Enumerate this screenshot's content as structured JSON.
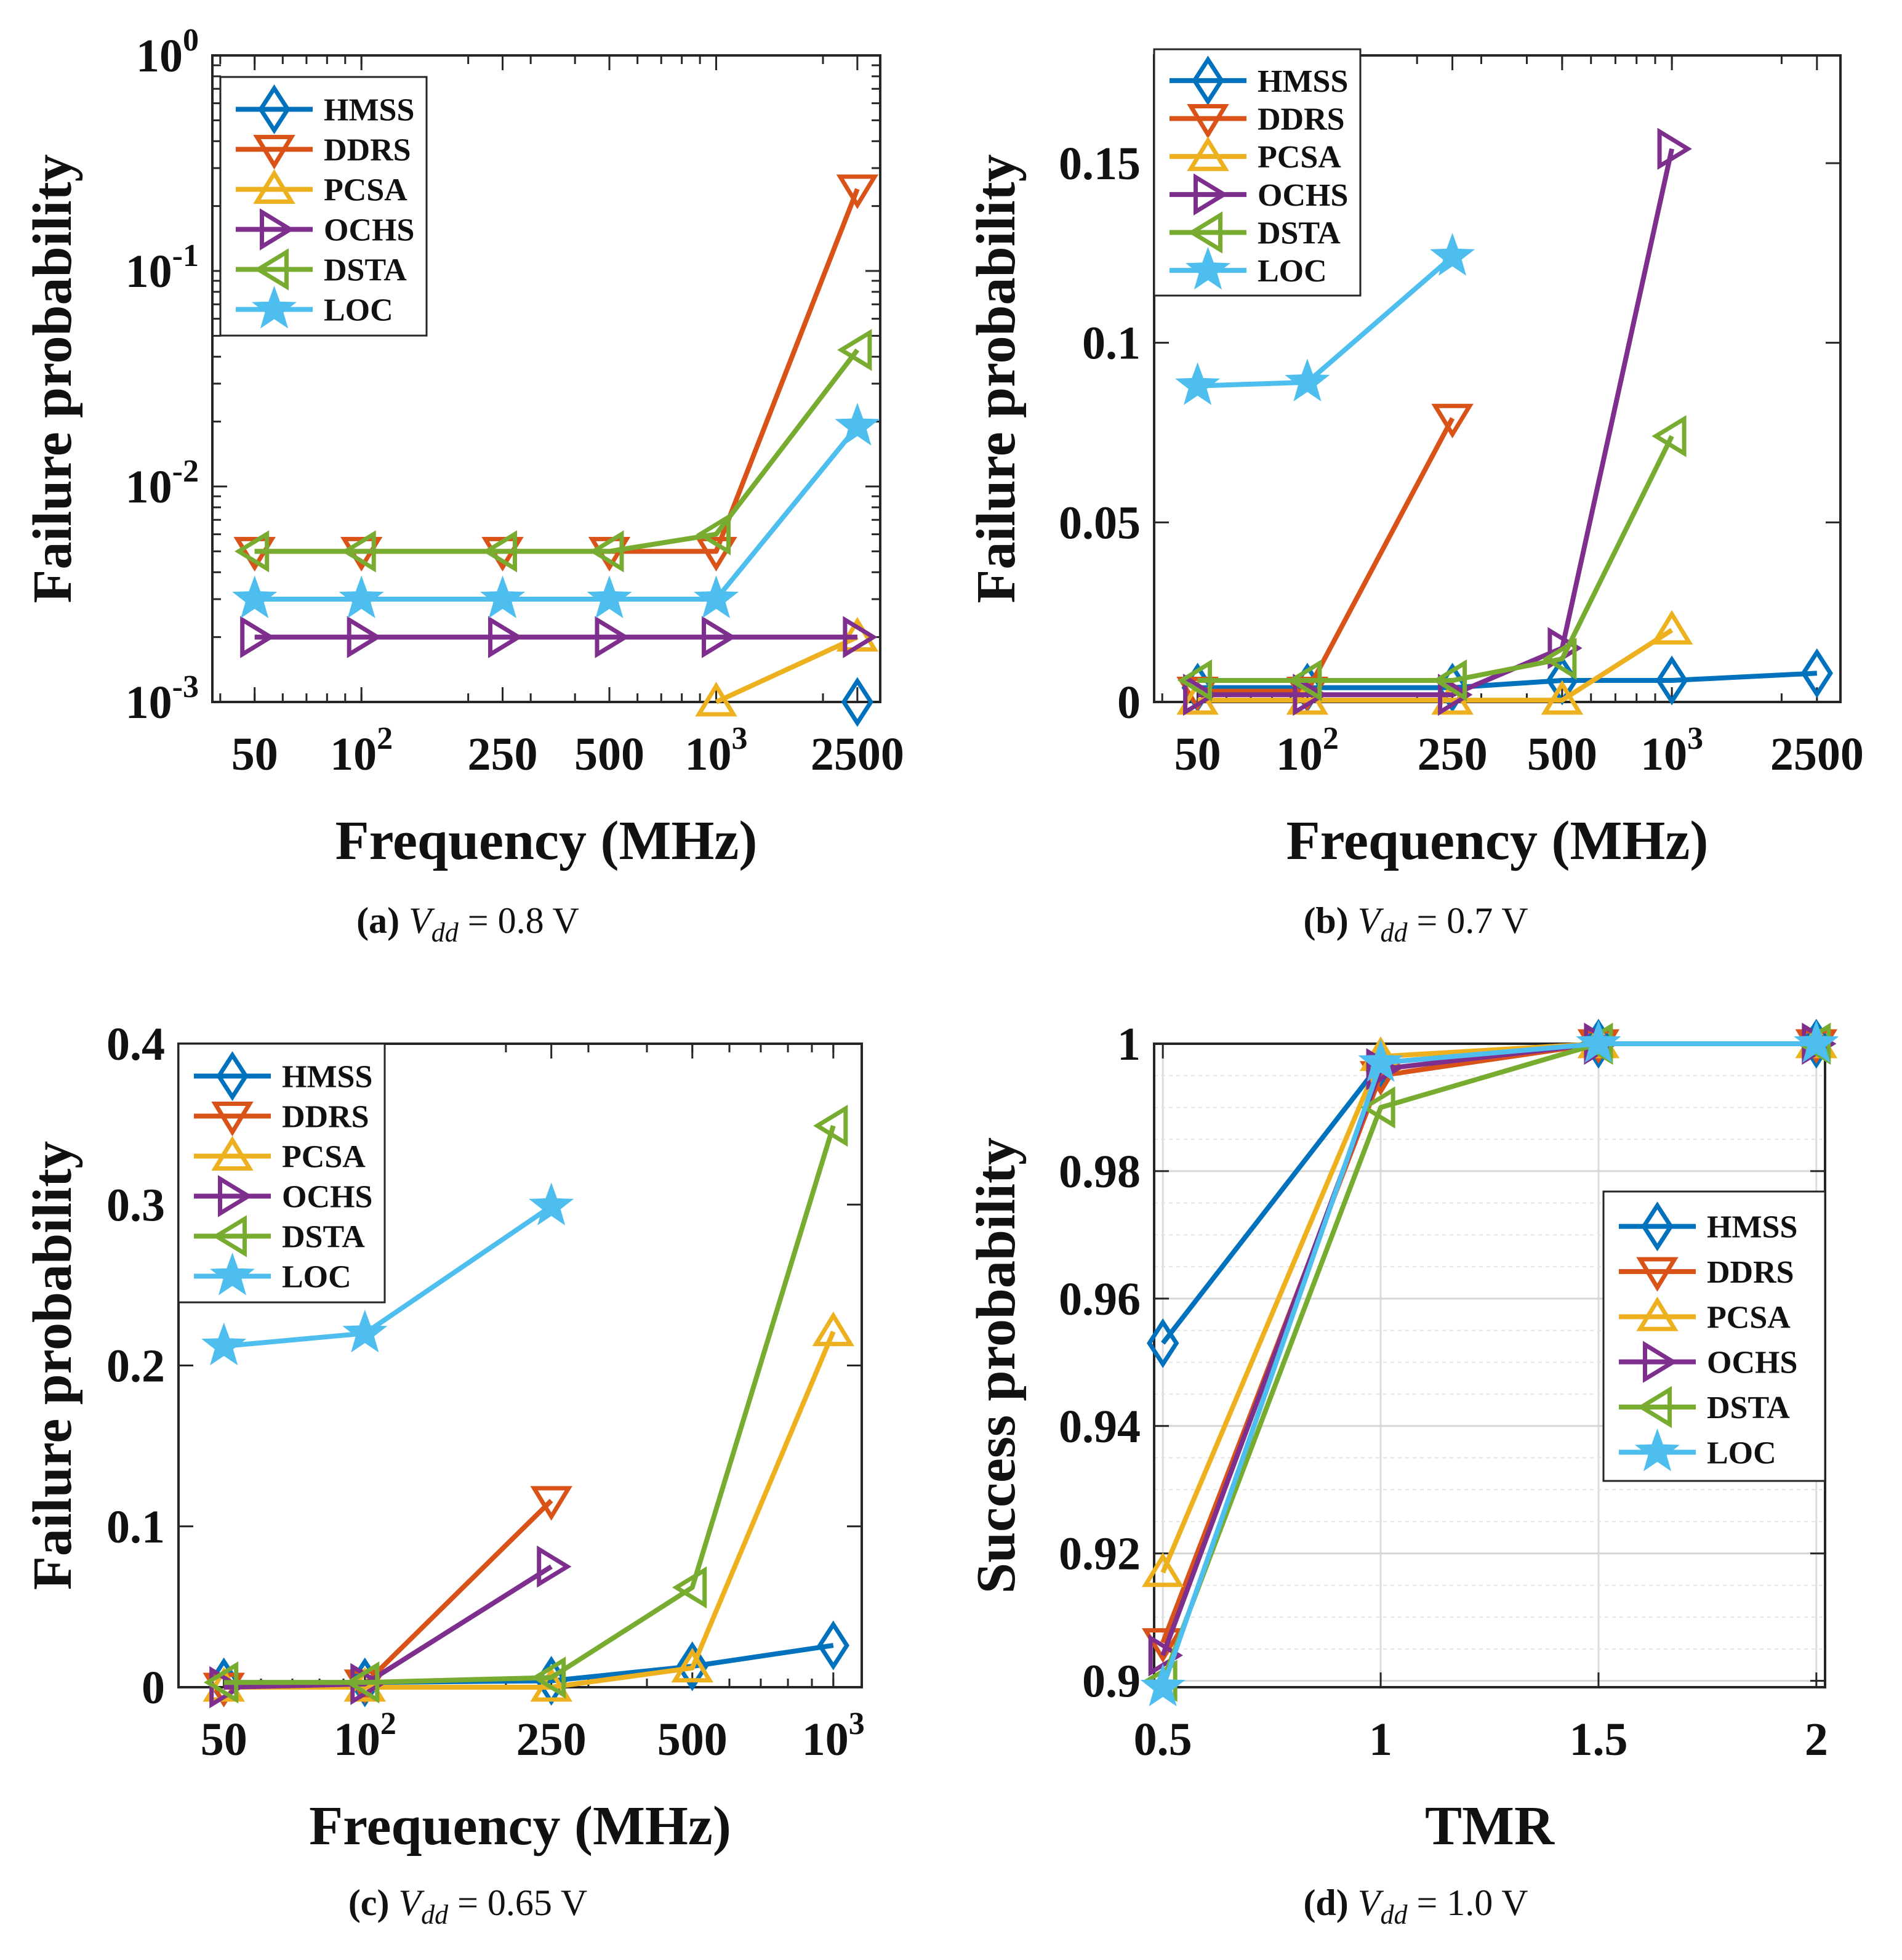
{
  "colors": {
    "HMSS": "#0072BD",
    "DDRS": "#D95319",
    "PCSA": "#EDB120",
    "OCHS": "#7E2F8E",
    "DSTA": "#77AC30",
    "LOC": "#4DBEEE"
  },
  "markers": {
    "HMSS": "diamond",
    "DDRS": "triangle-down",
    "PCSA": "triangle-up",
    "OCHS": "triangle-right",
    "DSTA": "triangle-left",
    "LOC": "star"
  },
  "chart_data": [
    {
      "id": "a",
      "type": "line",
      "xscale": "log",
      "yscale": "log",
      "xlim": [
        38,
        2900
      ],
      "ylim": [
        0.001,
        1
      ],
      "xticks": [
        {
          "v": 50,
          "base": "50",
          "exp": ""
        },
        {
          "v": 100,
          "base": "10",
          "exp": "2"
        },
        {
          "v": 250,
          "base": "250",
          "exp": ""
        },
        {
          "v": 500,
          "base": "500",
          "exp": ""
        },
        {
          "v": 1000,
          "base": "10",
          "exp": "3"
        },
        {
          "v": 2500,
          "base": "2500",
          "exp": ""
        }
      ],
      "yticks": [
        {
          "v": 0.001,
          "base": "10",
          "exp": "-3"
        },
        {
          "v": 0.01,
          "base": "10",
          "exp": "-2"
        },
        {
          "v": 0.1,
          "base": "10",
          "exp": "-1"
        },
        {
          "v": 1,
          "base": "10",
          "exp": "0"
        }
      ],
      "xlabel": "Frequency (MHz)",
      "ylabel": "Failure probability",
      "legend_position": "top-left",
      "caption": {
        "label": "(a)",
        "var": "V",
        "sub": "dd",
        "rest": " = 0.8 V"
      },
      "series": [
        {
          "name": "HMSS",
          "x": [
            2500
          ],
          "y": [
            0.001
          ]
        },
        {
          "name": "DDRS",
          "x": [
            50,
            100,
            250,
            500,
            1000,
            2500
          ],
          "y": [
            0.005,
            0.005,
            0.005,
            0.005,
            0.005,
            0.24
          ]
        },
        {
          "name": "PCSA",
          "x": [
            1000,
            2500
          ],
          "y": [
            0.001,
            0.002
          ]
        },
        {
          "name": "OCHS",
          "x": [
            50,
            100,
            250,
            500,
            1000,
            2500
          ],
          "y": [
            0.002,
            0.002,
            0.002,
            0.002,
            0.002,
            0.002
          ]
        },
        {
          "name": "DSTA",
          "x": [
            50,
            100,
            250,
            500,
            1000,
            2500
          ],
          "y": [
            0.005,
            0.005,
            0.005,
            0.005,
            0.006,
            0.043
          ]
        },
        {
          "name": "LOC",
          "x": [
            50,
            100,
            250,
            500,
            1000,
            2500
          ],
          "y": [
            0.003,
            0.003,
            0.003,
            0.003,
            0.003,
            0.019
          ]
        }
      ]
    },
    {
      "id": "b",
      "type": "line",
      "xscale": "log",
      "yscale": "linear",
      "xlim": [
        38,
        2900
      ],
      "ylim": [
        0,
        0.18
      ],
      "xticks": [
        {
          "v": 50,
          "base": "50",
          "exp": ""
        },
        {
          "v": 100,
          "base": "10",
          "exp": "2"
        },
        {
          "v": 250,
          "base": "250",
          "exp": ""
        },
        {
          "v": 500,
          "base": "500",
          "exp": ""
        },
        {
          "v": 1000,
          "base": "10",
          "exp": "3"
        },
        {
          "v": 2500,
          "base": "2500",
          "exp": ""
        }
      ],
      "yticks": [
        {
          "v": 0,
          "base": "0",
          "exp": ""
        },
        {
          "v": 0.05,
          "base": "0.05",
          "exp": ""
        },
        {
          "v": 0.1,
          "base": "0.1",
          "exp": ""
        },
        {
          "v": 0.15,
          "base": "0.15",
          "exp": ""
        }
      ],
      "xlabel": "Frequency (MHz)",
      "ylabel": "Failure probability",
      "legend_position": "top-left",
      "caption": {
        "label": "(b)",
        "var": "V",
        "sub": "dd",
        "rest": " = 0.7 V"
      },
      "series": [
        {
          "name": "HMSS",
          "x": [
            50,
            100,
            250,
            500,
            1000,
            2500
          ],
          "y": [
            0.004,
            0.004,
            0.004,
            0.006,
            0.006,
            0.008
          ]
        },
        {
          "name": "DDRS",
          "x": [
            50,
            100,
            250
          ],
          "y": [
            0.003,
            0.003,
            0.079
          ]
        },
        {
          "name": "PCSA",
          "x": [
            50,
            100,
            250,
            500,
            1000
          ],
          "y": [
            0.0005,
            0.0005,
            0.0005,
            0.0005,
            0.02
          ]
        },
        {
          "name": "OCHS",
          "x": [
            50,
            100,
            250,
            500,
            1000
          ],
          "y": [
            0.002,
            0.002,
            0.002,
            0.015,
            0.154
          ]
        },
        {
          "name": "DSTA",
          "x": [
            50,
            100,
            250,
            500,
            1000
          ],
          "y": [
            0.006,
            0.006,
            0.006,
            0.012,
            0.074
          ]
        },
        {
          "name": "LOC",
          "x": [
            50,
            100,
            250
          ],
          "y": [
            0.088,
            0.089,
            0.124
          ]
        }
      ]
    },
    {
      "id": "c",
      "type": "line",
      "xscale": "log",
      "yscale": "linear",
      "xlim": [
        40,
        1150
      ],
      "ylim": [
        0,
        0.4
      ],
      "xticks": [
        {
          "v": 50,
          "base": "50",
          "exp": ""
        },
        {
          "v": 100,
          "base": "10",
          "exp": "2"
        },
        {
          "v": 250,
          "base": "250",
          "exp": ""
        },
        {
          "v": 500,
          "base": "500",
          "exp": ""
        },
        {
          "v": 1000,
          "base": "10",
          "exp": "3"
        }
      ],
      "yticks": [
        {
          "v": 0,
          "base": "0",
          "exp": ""
        },
        {
          "v": 0.1,
          "base": "0.1",
          "exp": ""
        },
        {
          "v": 0.2,
          "base": "0.2",
          "exp": ""
        },
        {
          "v": 0.3,
          "base": "0.3",
          "exp": ""
        },
        {
          "v": 0.4,
          "base": "0.4",
          "exp": ""
        }
      ],
      "xlabel": "Frequency (MHz)",
      "ylabel": "Failure probability",
      "legend_position": "top-left",
      "caption": {
        "label": "(c)",
        "var": "V",
        "sub": "dd",
        "rest": " = 0.65 V"
      },
      "series": [
        {
          "name": "HMSS",
          "x": [
            50,
            100,
            250,
            500,
            1000
          ],
          "y": [
            0.003,
            0.003,
            0.004,
            0.013,
            0.026
          ]
        },
        {
          "name": "DDRS",
          "x": [
            50,
            100,
            250
          ],
          "y": [
            0.0,
            0.002,
            0.116
          ]
        },
        {
          "name": "PCSA",
          "x": [
            50,
            100,
            250,
            500,
            1000
          ],
          "y": [
            0.0,
            0.0,
            0.0,
            0.012,
            0.221
          ]
        },
        {
          "name": "OCHS",
          "x": [
            50,
            100,
            250
          ],
          "y": [
            0.0,
            0.002,
            0.075
          ]
        },
        {
          "name": "DSTA",
          "x": [
            50,
            100,
            250,
            500,
            1000
          ],
          "y": [
            0.003,
            0.003,
            0.006,
            0.062,
            0.349
          ]
        },
        {
          "name": "LOC",
          "x": [
            50,
            100,
            250
          ],
          "y": [
            0.212,
            0.22,
            0.299
          ]
        }
      ]
    },
    {
      "id": "d",
      "type": "line",
      "xscale": "linear",
      "yscale": "linear",
      "xlim": [
        0.48,
        2.02
      ],
      "ylim": [
        0.899,
        1.0
      ],
      "grid": true,
      "xticks": [
        {
          "v": 0.5,
          "base": "0.5",
          "exp": ""
        },
        {
          "v": 1,
          "base": "1",
          "exp": ""
        },
        {
          "v": 1.5,
          "base": "1.5",
          "exp": ""
        },
        {
          "v": 2,
          "base": "2",
          "exp": ""
        }
      ],
      "yticks": [
        {
          "v": 0.9,
          "base": "0.9",
          "exp": ""
        },
        {
          "v": 0.92,
          "base": "0.92",
          "exp": ""
        },
        {
          "v": 0.94,
          "base": "0.94",
          "exp": ""
        },
        {
          "v": 0.96,
          "base": "0.96",
          "exp": ""
        },
        {
          "v": 0.98,
          "base": "0.98",
          "exp": ""
        },
        {
          "v": 1,
          "base": "1",
          "exp": ""
        }
      ],
      "xlabel": "TMR",
      "ylabel": "Success probability",
      "legend_position": "center-right",
      "caption": {
        "label": "(d)",
        "var": "V",
        "sub": "dd",
        "rest": " = 1.0 V"
      },
      "series": [
        {
          "name": "HMSS",
          "x": [
            0.5,
            1,
            1.5,
            2
          ],
          "y": [
            0.953,
            0.997,
            1.0,
            1.0
          ]
        },
        {
          "name": "DDRS",
          "x": [
            0.5,
            1,
            1.5,
            2
          ],
          "y": [
            0.906,
            0.995,
            1.0,
            1.0
          ]
        },
        {
          "name": "PCSA",
          "x": [
            0.5,
            1,
            1.5,
            2
          ],
          "y": [
            0.917,
            0.998,
            1.0,
            1.0
          ]
        },
        {
          "name": "OCHS",
          "x": [
            0.5,
            1,
            1.5,
            2
          ],
          "y": [
            0.904,
            0.996,
            1.0,
            1.0
          ]
        },
        {
          "name": "DSTA",
          "x": [
            0.5,
            1,
            1.5,
            2
          ],
          "y": [
            0.9,
            0.99,
            1.0,
            1.0
          ]
        },
        {
          "name": "LOC",
          "x": [
            0.5,
            1,
            1.5,
            2
          ],
          "y": [
            0.899,
            0.997,
            1.0,
            1.0
          ]
        }
      ]
    }
  ]
}
